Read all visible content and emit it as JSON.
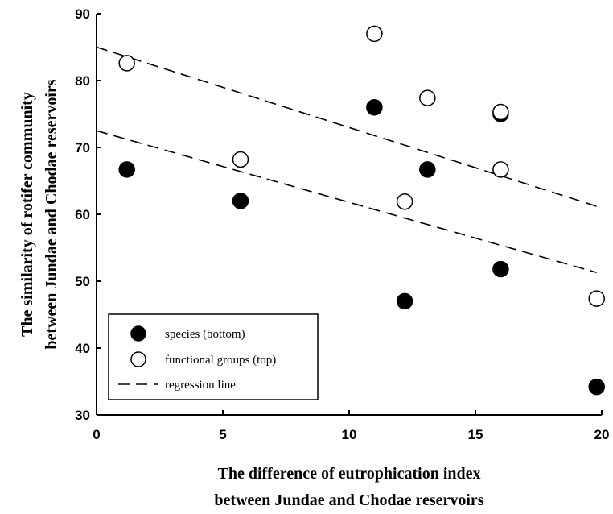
{
  "chart_data": {
    "type": "scatter",
    "xlabel": [
      "The difference of eutrophication index",
      "between  Jundae  and Chodae reservoirs"
    ],
    "ylabel": [
      "The similarity of rotifer community",
      "between  Jundae  and Chodae reservoirs"
    ],
    "xlim": [
      0,
      20
    ],
    "ylim": [
      30,
      90
    ],
    "x_ticks": [
      "0",
      "5",
      "10",
      "15",
      "20"
    ],
    "y_ticks": [
      "30",
      "40",
      "50",
      "60",
      "70",
      "80",
      "90"
    ],
    "series": [
      {
        "name": "species (bottom)",
        "marker": "filled-circle",
        "points": [
          [
            1.2,
            66.7
          ],
          [
            5.7,
            62.0
          ],
          [
            11.0,
            76.0
          ],
          [
            12.2,
            47.0
          ],
          [
            13.1,
            66.7
          ],
          [
            16.0,
            75.0
          ],
          [
            16.0,
            51.8
          ],
          [
            19.8,
            34.2
          ]
        ]
      },
      {
        "name": "functional groups (top)",
        "marker": "open-circle",
        "points": [
          [
            1.2,
            82.6
          ],
          [
            5.7,
            68.2
          ],
          [
            11.0,
            87.0
          ],
          [
            12.2,
            61.9
          ],
          [
            13.1,
            77.4
          ],
          [
            16.0,
            75.3
          ],
          [
            16.0,
            66.7
          ],
          [
            19.8,
            47.4
          ]
        ]
      }
    ],
    "regression_lines": [
      {
        "name": "regression line",
        "for": "functional groups (top)",
        "x": [
          0,
          19.8
        ],
        "y": [
          85.0,
          61.2
        ]
      },
      {
        "for": "species (bottom)",
        "x": [
          0,
          19.8
        ],
        "y": [
          72.5,
          51.3
        ]
      }
    ],
    "legend": {
      "placement": "bottom-left",
      "entries": [
        {
          "label": "species (bottom)",
          "symbol": "filled-circle"
        },
        {
          "label": "functional groups (top)",
          "symbol": "open-circle"
        },
        {
          "label": "regression line",
          "symbol": "dashed-line"
        }
      ]
    },
    "grid": false,
    "colors": {
      "marker_fill": "#000000",
      "open_fill": "#ffffff",
      "line": "#000000"
    }
  }
}
